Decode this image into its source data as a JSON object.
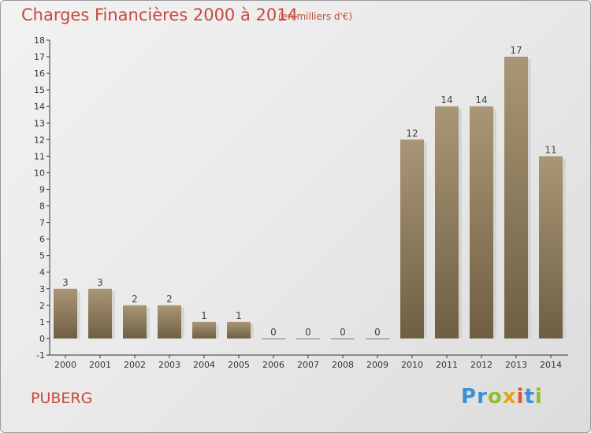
{
  "header": {
    "title": "Charges Financières 2000 à 2014",
    "unit": "(en milliers d'€)"
  },
  "footer": {
    "commune": "PUBERG",
    "logo_letters": [
      {
        "ch": "P",
        "color": "#3a8fd6"
      },
      {
        "ch": "r",
        "color": "#3a8fd6"
      },
      {
        "ch": "o",
        "color": "#8fbf2a"
      },
      {
        "ch": "x",
        "color": "#e8a21c"
      },
      {
        "ch": "i",
        "color": "#e2562c"
      },
      {
        "ch": "t",
        "color": "#3a8fd6"
      },
      {
        "ch": "i",
        "color": "#8fbf2a"
      }
    ]
  },
  "chart_data": {
    "type": "bar",
    "categories": [
      "2000",
      "2001",
      "2002",
      "2003",
      "2004",
      "2005",
      "2006",
      "2007",
      "2008",
      "2009",
      "2010",
      "2011",
      "2012",
      "2013",
      "2014"
    ],
    "values": [
      3,
      3,
      2,
      2,
      1,
      1,
      0,
      0,
      0,
      0,
      12,
      14,
      14,
      17,
      11
    ],
    "yticks": [
      "-1",
      "0",
      "1",
      "2",
      "3",
      "4",
      "5",
      "6",
      "7",
      "8",
      "9",
      "10",
      "11",
      "12",
      "13",
      "14",
      "15",
      "16",
      "17",
      "18"
    ],
    "ylim": [
      -1,
      18
    ],
    "grid": false,
    "bar_color": "#8a7a5c"
  }
}
